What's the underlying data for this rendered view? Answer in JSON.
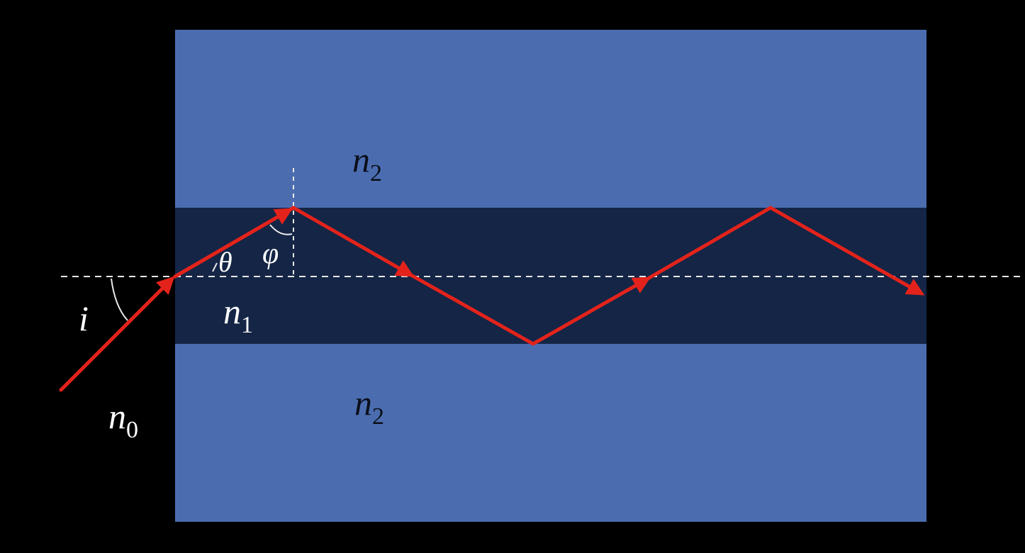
{
  "colors": {
    "background": "#000000",
    "cladding": "#4b6db0",
    "core": "#142546",
    "ray": "#e3231b",
    "axis": "#e8e8e8",
    "label_on_dark": "#ffffff",
    "label_on_light": "#0b0f1a"
  },
  "labels": {
    "cladding_top": {
      "symbol": "n",
      "subscript": "2"
    },
    "cladding_bottom": {
      "symbol": "n",
      "subscript": "2"
    },
    "core": {
      "symbol": "n",
      "subscript": "1"
    },
    "outside": {
      "symbol": "n",
      "subscript": "0"
    },
    "incidence_angle": "i",
    "refraction_angle": "θ",
    "reflection_angle": "φ"
  }
}
